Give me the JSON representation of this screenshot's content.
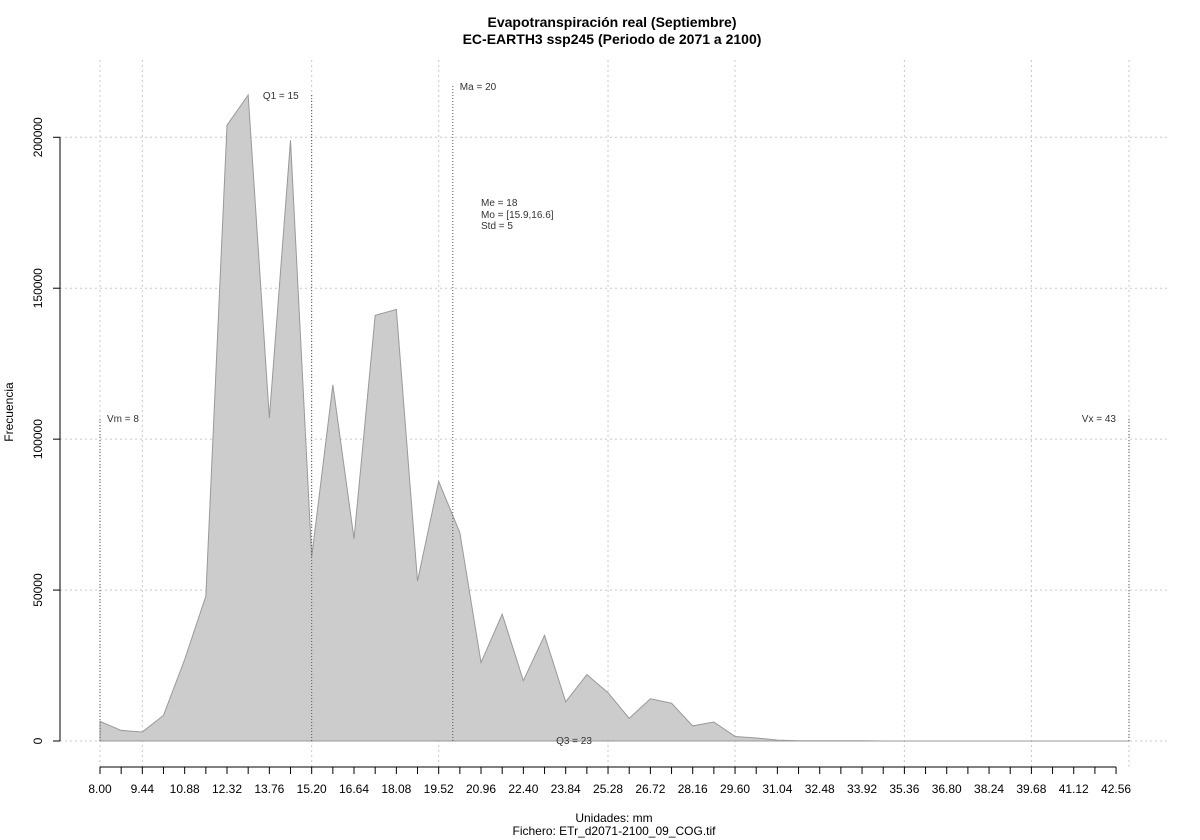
{
  "chart_data": {
    "type": "area",
    "title": "Evapotranspiración real (Septiembre)",
    "subtitle": "EC-EARTH3 ssp245 (Periodo de 2071 a 2100)",
    "xlabel": "Unidades: mm",
    "ylabel": "Frecuencia",
    "footer": "Fichero: ETr_d2071-2100_09_COG.tif",
    "xlim": [
      8.0,
      43.0
    ],
    "ylim": [
      0,
      215000
    ],
    "x_ticks": [
      "8.00",
      "9.44",
      "10.88",
      "12.32",
      "13.76",
      "15.20",
      "16.64",
      "18.08",
      "19.52",
      "20.96",
      "22.40",
      "23.84",
      "25.28",
      "26.72",
      "28.16",
      "29.60",
      "31.04",
      "32.48",
      "33.92",
      "35.36",
      "36.80",
      "38.24",
      "39.68",
      "41.12",
      "42.56"
    ],
    "x_tick_values": [
      8.0,
      9.44,
      10.88,
      12.32,
      13.76,
      15.2,
      16.64,
      18.08,
      19.52,
      20.96,
      22.4,
      23.84,
      25.28,
      26.72,
      28.16,
      29.6,
      31.04,
      32.48,
      33.92,
      35.36,
      36.8,
      38.24,
      39.68,
      41.12,
      42.56
    ],
    "x_minor_step": 0.72,
    "y_ticks": [
      "0",
      "50000",
      "100000",
      "150000",
      "200000"
    ],
    "y_tick_values": [
      0,
      50000,
      100000,
      150000,
      200000
    ],
    "grid_x": [
      8.0,
      9.44,
      15.2,
      19.52,
      25.28,
      29.6,
      35.36,
      39.68,
      43.0
    ],
    "series": [
      {
        "x": [
          8.0,
          8.72,
          9.44,
          10.16,
          10.88,
          11.6,
          12.32,
          13.04,
          13.76,
          14.48,
          15.2,
          15.92,
          16.64,
          17.36,
          18.08,
          18.8,
          19.52,
          20.24,
          20.96,
          21.68,
          22.4,
          23.12,
          23.84,
          24.56,
          25.28,
          26.0,
          26.72,
          27.44,
          28.16,
          28.88,
          29.6,
          30.32,
          31.04,
          31.76,
          32.48,
          33.2,
          33.92,
          34.64,
          35.36,
          36.08,
          36.8,
          37.52,
          38.24,
          38.96,
          39.68,
          40.4,
          41.12,
          41.84,
          42.56,
          43.0
        ],
        "values": [
          6500,
          3500,
          3000,
          8500,
          27000,
          48000,
          204000,
          214000,
          107000,
          199000,
          61000,
          118000,
          67000,
          141000,
          143000,
          53000,
          86000,
          69000,
          26000,
          42000,
          20000,
          35000,
          13000,
          22000,
          16000,
          7500,
          14000,
          12500,
          5000,
          6300,
          1500,
          1000,
          300,
          100,
          100,
          100,
          100,
          0,
          0,
          0,
          0,
          0,
          0,
          0,
          0,
          0,
          0,
          0,
          0,
          0
        ]
      }
    ],
    "reference_lines": [
      {
        "label": "Vm = 8",
        "x": 8.0,
        "height": 107000
      },
      {
        "label": "Q1 = 15",
        "x": 15.2,
        "height": 214000
      },
      {
        "label": "Ma = 20",
        "x": 20.0,
        "height": 217000
      },
      {
        "label": "Vx = 43",
        "x": 43.0,
        "height": 107000
      }
    ],
    "q3_label": "Q3 = 23",
    "stats": [
      "Me = 18",
      "Mo = [15.9,16.6]",
      "Std = 5"
    ]
  }
}
